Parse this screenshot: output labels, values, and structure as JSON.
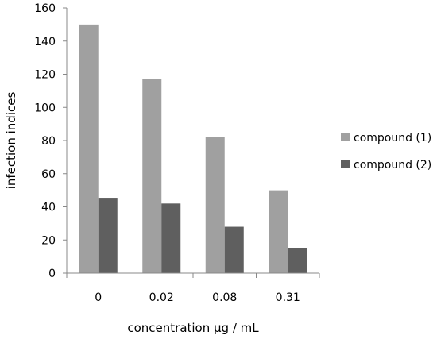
{
  "chart_data": {
    "type": "bar",
    "title": "",
    "xlabel": "concentration µg / mL",
    "ylabel": "infection indices",
    "categories": [
      "0",
      "0.02",
      "0.08",
      "0.31"
    ],
    "series": [
      {
        "name": "compound (1)",
        "values": [
          150,
          117,
          82,
          50
        ],
        "color": "#a0a0a0"
      },
      {
        "name": "compound (2)",
        "values": [
          45,
          42,
          28,
          15
        ],
        "color": "#5f5f5f"
      }
    ],
    "ylim": [
      0,
      160
    ],
    "yticks": [
      0,
      20,
      40,
      60,
      80,
      100,
      120,
      140,
      160
    ],
    "grid": false,
    "legend_position": "right"
  }
}
